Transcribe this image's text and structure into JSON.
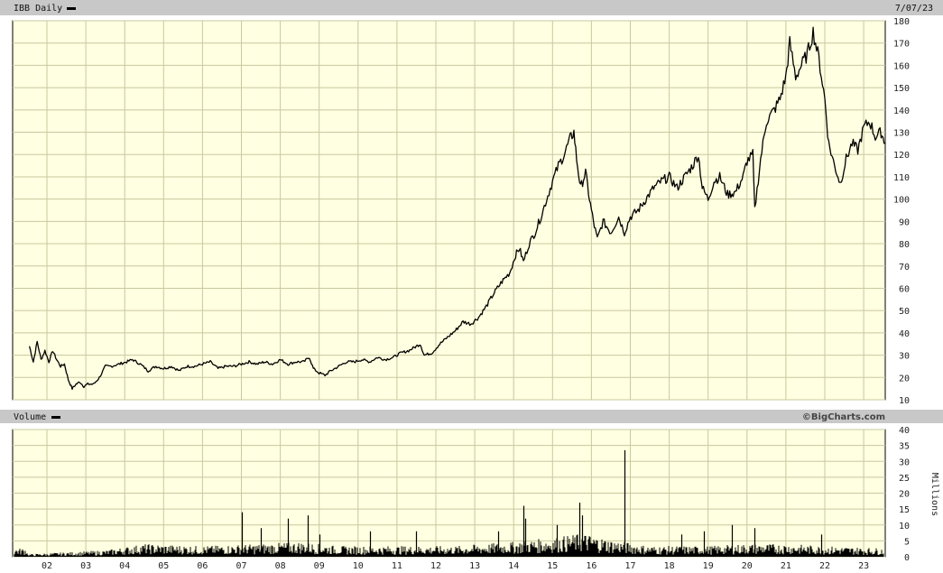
{
  "header": {
    "title": "IBB Daily",
    "date": "7/07/23"
  },
  "volume_header": {
    "title": "Volume",
    "credit": "©BigCharts.com"
  },
  "colors": {
    "plot_bg": "#ffffe1",
    "grid": "#c8c8a0",
    "bar": "#c8c8c8",
    "price_line": "#000000",
    "volume": "#000000"
  },
  "chart_data": [
    {
      "type": "line",
      "title": "IBB Daily",
      "ylim": [
        10,
        180
      ],
      "y_ticks": [
        "180",
        "170",
        "160",
        "150",
        "140",
        "130",
        "120",
        "110",
        "100",
        "90",
        "80",
        "70",
        "60",
        "50",
        "40",
        "30",
        "20",
        "10"
      ],
      "grid": true,
      "series": [
        {
          "name": "IBB Daily",
          "points": [
            [
              2001.55,
              34
            ],
            [
              2001.65,
              27
            ],
            [
              2001.75,
              36
            ],
            [
              2001.85,
              28
            ],
            [
              2001.95,
              32
            ],
            [
              2002.05,
              27
            ],
            [
              2002.15,
              32
            ],
            [
              2002.25,
              28
            ],
            [
              2002.35,
              25
            ],
            [
              2002.45,
              26
            ],
            [
              2002.55,
              19
            ],
            [
              2002.65,
              15
            ],
            [
              2002.75,
              17
            ],
            [
              2002.85,
              18
            ],
            [
              2002.95,
              16
            ],
            [
              2003.05,
              17
            ],
            [
              2003.2,
              17
            ],
            [
              2003.35,
              20
            ],
            [
              2003.5,
              25
            ],
            [
              2003.65,
              25
            ],
            [
              2003.85,
              26
            ],
            [
              2004.05,
              27
            ],
            [
              2004.2,
              28
            ],
            [
              2004.4,
              26
            ],
            [
              2004.6,
              23
            ],
            [
              2004.8,
              25
            ],
            [
              2005.0,
              24
            ],
            [
              2005.2,
              25
            ],
            [
              2005.4,
              23
            ],
            [
              2005.6,
              25
            ],
            [
              2005.8,
              25
            ],
            [
              2006.0,
              26
            ],
            [
              2006.2,
              27
            ],
            [
              2006.4,
              24
            ],
            [
              2006.6,
              25
            ],
            [
              2006.8,
              25
            ],
            [
              2007.0,
              26
            ],
            [
              2007.2,
              27
            ],
            [
              2007.4,
              26
            ],
            [
              2007.6,
              27
            ],
            [
              2007.8,
              26
            ],
            [
              2008.0,
              28
            ],
            [
              2008.2,
              26
            ],
            [
              2008.4,
              27
            ],
            [
              2008.6,
              27
            ],
            [
              2008.75,
              29
            ],
            [
              2008.85,
              24
            ],
            [
              2009.0,
              22
            ],
            [
              2009.15,
              21
            ],
            [
              2009.3,
              23
            ],
            [
              2009.5,
              25
            ],
            [
              2009.7,
              27
            ],
            [
              2009.9,
              27
            ],
            [
              2010.1,
              28
            ],
            [
              2010.3,
              27
            ],
            [
              2010.5,
              29
            ],
            [
              2010.7,
              28
            ],
            [
              2010.9,
              29
            ],
            [
              2011.1,
              31
            ],
            [
              2011.3,
              32
            ],
            [
              2011.5,
              34
            ],
            [
              2011.6,
              35
            ],
            [
              2011.7,
              30
            ],
            [
              2011.9,
              31
            ],
            [
              2012.1,
              35
            ],
            [
              2012.3,
              38
            ],
            [
              2012.5,
              41
            ],
            [
              2012.7,
              45
            ],
            [
              2012.9,
              44
            ],
            [
              2013.1,
              47
            ],
            [
              2013.3,
              52
            ],
            [
              2013.5,
              58
            ],
            [
              2013.7,
              63
            ],
            [
              2013.9,
              67
            ],
            [
              2014.05,
              75
            ],
            [
              2014.15,
              78
            ],
            [
              2014.25,
              72
            ],
            [
              2014.4,
              80
            ],
            [
              2014.55,
              85
            ],
            [
              2014.7,
              92
            ],
            [
              2014.85,
              100
            ],
            [
              2015.0,
              108
            ],
            [
              2015.15,
              115
            ],
            [
              2015.3,
              120
            ],
            [
              2015.45,
              127
            ],
            [
              2015.55,
              130
            ],
            [
              2015.62,
              118
            ],
            [
              2015.72,
              105
            ],
            [
              2015.85,
              112
            ],
            [
              2015.95,
              100
            ],
            [
              2016.05,
              90
            ],
            [
              2016.15,
              82
            ],
            [
              2016.3,
              90
            ],
            [
              2016.5,
              85
            ],
            [
              2016.7,
              92
            ],
            [
              2016.85,
              85
            ],
            [
              2017.0,
              92
            ],
            [
              2017.2,
              95
            ],
            [
              2017.4,
              100
            ],
            [
              2017.6,
              105
            ],
            [
              2017.8,
              108
            ],
            [
              2018.0,
              110
            ],
            [
              2018.2,
              105
            ],
            [
              2018.4,
              110
            ],
            [
              2018.6,
              115
            ],
            [
              2018.75,
              120
            ],
            [
              2018.85,
              105
            ],
            [
              2019.0,
              100
            ],
            [
              2019.15,
              108
            ],
            [
              2019.3,
              110
            ],
            [
              2019.5,
              102
            ],
            [
              2019.7,
              103
            ],
            [
              2019.9,
              110
            ],
            [
              2020.0,
              117
            ],
            [
              2020.15,
              120
            ],
            [
              2020.2,
              95
            ],
            [
              2020.35,
              118
            ],
            [
              2020.5,
              135
            ],
            [
              2020.7,
              140
            ],
            [
              2020.85,
              145
            ],
            [
              2021.0,
              155
            ],
            [
              2021.1,
              170
            ],
            [
              2021.25,
              155
            ],
            [
              2021.4,
              160
            ],
            [
              2021.55,
              165
            ],
            [
              2021.7,
              175
            ],
            [
              2021.85,
              163
            ],
            [
              2022.0,
              145
            ],
            [
              2022.1,
              125
            ],
            [
              2022.25,
              115
            ],
            [
              2022.4,
              107
            ],
            [
              2022.55,
              118
            ],
            [
              2022.7,
              125
            ],
            [
              2022.85,
              122
            ],
            [
              2023.0,
              132
            ],
            [
              2023.15,
              135
            ],
            [
              2023.3,
              128
            ],
            [
              2023.45,
              130
            ],
            [
              2023.55,
              125
            ]
          ]
        }
      ],
      "x_ticks": [
        "02",
        "03",
        "04",
        "05",
        "06",
        "07",
        "08",
        "09",
        "10",
        "11",
        "12",
        "13",
        "14",
        "15",
        "16",
        "17",
        "18",
        "19",
        "20",
        "21",
        "22",
        "23"
      ],
      "x_tick_years": [
        2002,
        2003,
        2004,
        2005,
        2006,
        2007,
        2008,
        2009,
        2010,
        2011,
        2012,
        2013,
        2014,
        2015,
        2016,
        2017,
        2018,
        2019,
        2020,
        2021,
        2022,
        2023
      ]
    },
    {
      "type": "bar",
      "title": "Volume",
      "ylabel": "Millions",
      "ylim": [
        0,
        40
      ],
      "y_ticks": [
        "40",
        "35",
        "30",
        "25",
        "20",
        "15",
        "10",
        "5",
        "0"
      ],
      "baseline": [
        [
          2001.5,
          0.6
        ],
        [
          2003.5,
          1.5
        ],
        [
          2004.5,
          3
        ],
        [
          2006.0,
          2.5
        ],
        [
          2007.5,
          3
        ],
        [
          2008.5,
          3.5
        ],
        [
          2009.5,
          2.5
        ],
        [
          2011.0,
          2.5
        ],
        [
          2012.5,
          2.5
        ],
        [
          2014.0,
          3.5
        ],
        [
          2015.0,
          4.5
        ],
        [
          2015.8,
          5.5
        ],
        [
          2016.5,
          4
        ],
        [
          2017.5,
          2.5
        ],
        [
          2019.0,
          2.5
        ],
        [
          2020.0,
          3
        ],
        [
          2021.0,
          3
        ],
        [
          2022.0,
          2.5
        ],
        [
          2023.5,
          2
        ]
      ],
      "spikes": [
        [
          2007.0,
          14
        ],
        [
          2007.5,
          9
        ],
        [
          2008.2,
          12
        ],
        [
          2008.7,
          13
        ],
        [
          2009.0,
          7
        ],
        [
          2010.3,
          8
        ],
        [
          2011.5,
          8
        ],
        [
          2013.6,
          8
        ],
        [
          2014.25,
          16
        ],
        [
          2014.3,
          12
        ],
        [
          2015.1,
          10
        ],
        [
          2015.7,
          17
        ],
        [
          2015.75,
          13
        ],
        [
          2016.85,
          33.5
        ],
        [
          2018.3,
          7
        ],
        [
          2018.9,
          8
        ],
        [
          2019.6,
          10
        ],
        [
          2020.2,
          9
        ],
        [
          2021.9,
          7
        ]
      ]
    }
  ]
}
